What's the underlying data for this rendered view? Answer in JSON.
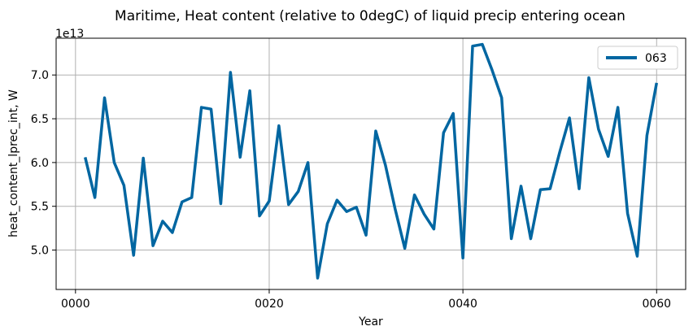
{
  "chart_data": {
    "type": "line",
    "title": "Maritime, Heat content (relative to 0degC) of liquid precip entering ocean",
    "xlabel": "Year",
    "ylabel": "heat_content_lprec_int, W",
    "y_offset_label": "1e13",
    "xlim": [
      -2,
      63
    ],
    "ylim": [
      4.55,
      7.42
    ],
    "x_ticks": [
      0,
      20,
      40,
      60
    ],
    "x_tick_labels": [
      "0000",
      "0020",
      "0040",
      "0060"
    ],
    "y_ticks": [
      5.0,
      5.5,
      6.0,
      6.5,
      7.0
    ],
    "y_tick_labels": [
      "5.0",
      "5.5",
      "6.0",
      "6.5",
      "7.0"
    ],
    "grid": true,
    "legend_position": "top-right",
    "series": [
      {
        "name": "063",
        "color": "#0066a1",
        "x": [
          1,
          2,
          3,
          4,
          5,
          6,
          7,
          8,
          9,
          10,
          11,
          12,
          13,
          14,
          15,
          16,
          17,
          18,
          19,
          20,
          21,
          22,
          23,
          24,
          25,
          26,
          27,
          28,
          29,
          30,
          31,
          32,
          33,
          34,
          35,
          36,
          37,
          38,
          39,
          40,
          41,
          42,
          43,
          44,
          45,
          46,
          47,
          48,
          49,
          50,
          51,
          52,
          53,
          54,
          55,
          56,
          57,
          58,
          59,
          60
        ],
        "values": [
          6.06,
          5.6,
          6.74,
          6.0,
          5.74,
          4.94,
          6.05,
          5.05,
          5.33,
          5.2,
          5.55,
          5.6,
          6.63,
          6.61,
          5.53,
          7.03,
          6.06,
          6.82,
          5.39,
          5.56,
          6.42,
          5.52,
          5.67,
          6.0,
          4.68,
          5.3,
          5.57,
          5.44,
          5.49,
          5.17,
          6.36,
          5.97,
          5.47,
          5.02,
          5.63,
          5.41,
          5.24,
          6.34,
          6.56,
          4.91,
          7.33,
          7.35,
          7.06,
          6.74,
          5.13,
          5.73,
          5.13,
          5.69,
          5.7,
          6.12,
          6.51,
          5.7,
          6.97,
          6.38,
          6.07,
          6.63,
          5.42,
          4.93,
          6.31,
          6.91
        ]
      }
    ]
  }
}
